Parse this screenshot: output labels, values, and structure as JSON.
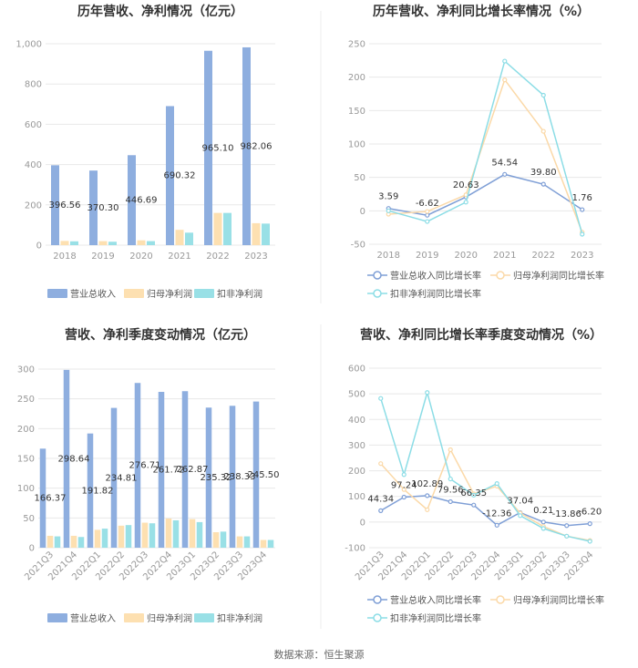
{
  "source": "数据来源：恒生聚源",
  "colors": {
    "revenue": "#8eaedf",
    "net_profit": "#fde0b1",
    "deducted": "#99e0e6",
    "revenue_line": "#7f9fd6",
    "net_profit_line": "#fbd9a8",
    "deducted_line": "#8cdde6"
  },
  "chart_data": [
    {
      "type": "bar",
      "title": "历年营收、净利情况（亿元）",
      "categories": [
        "2018",
        "2019",
        "2020",
        "2021",
        "2022",
        "2023"
      ],
      "ylim": [
        0,
        1000
      ],
      "yticks": [
        "0",
        "200",
        "400",
        "600",
        "800",
        "1,000"
      ],
      "ytick_values": [
        0,
        200,
        400,
        600,
        800,
        1000
      ],
      "series": [
        {
          "name": "营业总收入",
          "values": [
            396.56,
            370.3,
            446.69,
            690.32,
            965.1,
            982.06
          ],
          "labels": [
            "396.56",
            "370.30",
            "446.69",
            "690.32",
            "965.10",
            "982.06"
          ]
        },
        {
          "name": "归母净利润",
          "values": [
            21,
            20,
            24,
            76,
            160,
            109
          ]
        },
        {
          "name": "扣非净利润",
          "values": [
            19,
            17,
            20,
            62,
            160,
            107
          ]
        }
      ]
    },
    {
      "type": "line",
      "title": "历年营收、净利同比增长率情况（%）",
      "categories": [
        "2018",
        "2019",
        "2020",
        "2021",
        "2022",
        "2023"
      ],
      "ylim": [
        -50,
        250
      ],
      "yticks": [
        "-50",
        "0",
        "50",
        "100",
        "150",
        "200",
        "250"
      ],
      "ytick_values": [
        -50,
        0,
        50,
        100,
        150,
        200,
        250
      ],
      "series": [
        {
          "name": "营业总收入同比增长率",
          "values": [
            3.59,
            -6.62,
            20.63,
            54.54,
            39.8,
            1.76
          ],
          "labels": [
            "3.59",
            "-6.62",
            "20.63",
            "54.54",
            "39.80",
            "1.76"
          ]
        },
        {
          "name": "归母净利润同比增长率",
          "values": [
            -5,
            -1,
            24,
            196,
            119,
            -32
          ]
        },
        {
          "name": "扣非净利润同比增长率",
          "values": [
            0,
            -16,
            13,
            224,
            173,
            -35
          ]
        }
      ]
    },
    {
      "type": "bar",
      "title": "营收、净利季度变动情况（亿元）",
      "categories": [
        "2021Q3",
        "2021Q4",
        "2022Q1",
        "2022Q2",
        "2022Q3",
        "2022Q4",
        "2023Q1",
        "2023Q2",
        "2023Q3",
        "2023Q4"
      ],
      "ylim": [
        0,
        300
      ],
      "yticks": [
        "0",
        "50",
        "100",
        "150",
        "200",
        "250",
        "300"
      ],
      "ytick_values": [
        0,
        50,
        100,
        150,
        200,
        250,
        300
      ],
      "series": [
        {
          "name": "营业总收入",
          "values": [
            166.37,
            298.64,
            191.82,
            234.81,
            276.71,
            261.72,
            262.87,
            235.32,
            238.33,
            245.5
          ],
          "labels": [
            "166.37",
            "298.64",
            "191.82",
            "234.81",
            "276.71",
            "261.72",
            "262.87",
            "235.32",
            "238.33",
            "245.50"
          ]
        },
        {
          "name": "归母净利润",
          "values": [
            20,
            20,
            30,
            37,
            42,
            49,
            48,
            26,
            19,
            13
          ]
        },
        {
          "name": "扣非净利润",
          "values": [
            19,
            18,
            32,
            38,
            41,
            46,
            43,
            27,
            19,
            13
          ]
        }
      ]
    },
    {
      "type": "line",
      "title": "营收、净利同比增长率季度变动情况（%）",
      "categories": [
        "2021Q3",
        "2021Q4",
        "2022Q1",
        "2022Q2",
        "2022Q3",
        "2022Q4",
        "2023Q1",
        "2023Q2",
        "2023Q3",
        "2023Q4"
      ],
      "ylim": [
        -100,
        600
      ],
      "yticks": [
        "-100",
        "0",
        "100",
        "200",
        "300",
        "400",
        "500",
        "600"
      ],
      "ytick_values": [
        -100,
        0,
        100,
        200,
        300,
        400,
        500,
        600
      ],
      "series": [
        {
          "name": "营业总收入同比增长率",
          "values": [
            44.34,
            97.24,
            102.89,
            79.56,
            66.35,
            -12.36,
            37.04,
            0.21,
            -13.86,
            -6.2
          ],
          "labels": [
            "44.34",
            "97.24",
            "102.89",
            "79.56",
            "66.35",
            "-12.36",
            "37.04",
            "0.21",
            "-13.86",
            "-6.20"
          ]
        },
        {
          "name": "归母净利润同比增长率",
          "values": [
            228,
            127,
            48,
            282,
            110,
            140,
            35,
            -17,
            -55,
            -72
          ]
        },
        {
          "name": "扣非净利润同比增长率",
          "values": [
            482,
            185,
            505,
            168,
            105,
            150,
            25,
            -25,
            -55,
            -75
          ]
        }
      ]
    }
  ]
}
